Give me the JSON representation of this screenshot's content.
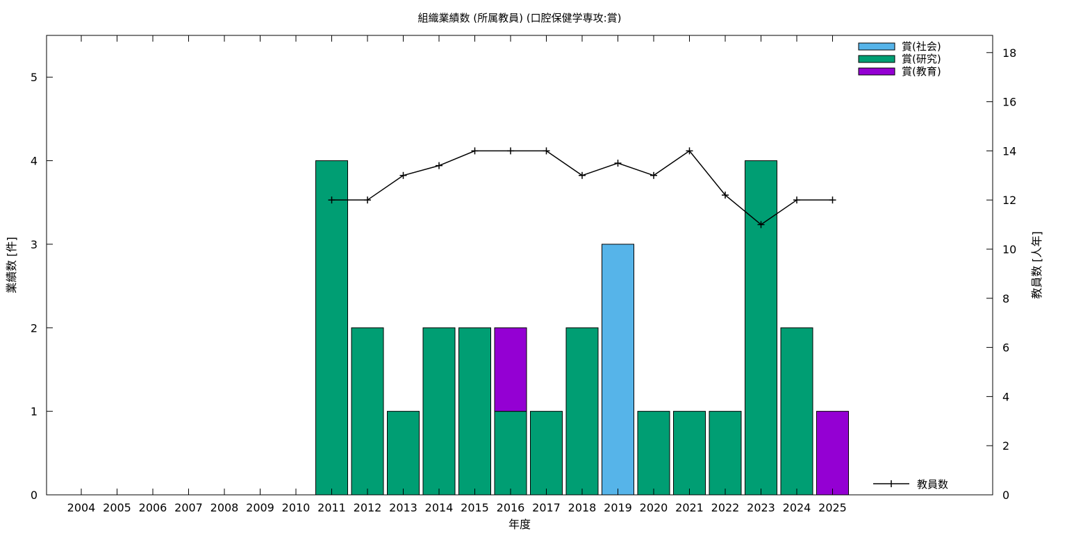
{
  "chart_data": {
    "type": "bar",
    "title": "組織業績数 (所属教員) (口腔保健学専攻:賞)",
    "xlabel": "年度",
    "ylabel": "業績数 [件]",
    "y2label": "教員数 [人年]",
    "categories": [
      "2004",
      "2005",
      "2006",
      "2007",
      "2008",
      "2009",
      "2010",
      "2011",
      "2012",
      "2013",
      "2014",
      "2015",
      "2016",
      "2017",
      "2018",
      "2019",
      "2020",
      "2021",
      "2022",
      "2023",
      "2024",
      "2025"
    ],
    "ylim": [
      0,
      5.5
    ],
    "yticks": [
      0,
      1,
      2,
      3,
      4,
      5
    ],
    "y2lim": [
      0,
      18.7
    ],
    "y2ticks": [
      0,
      2,
      4,
      6,
      8,
      10,
      12,
      14,
      16,
      18
    ],
    "stacked": true,
    "series": [
      {
        "name": "賞(社会)",
        "color": "#56b4e9",
        "values": [
          0,
          0,
          0,
          0,
          0,
          0,
          0,
          0,
          0,
          0,
          0,
          0,
          0,
          0,
          0,
          3,
          0,
          0,
          0,
          0,
          0,
          0
        ]
      },
      {
        "name": "賞(研究)",
        "color": "#009e73",
        "values": [
          0,
          0,
          0,
          0,
          0,
          0,
          0,
          4,
          2,
          1,
          2,
          2,
          1,
          1,
          2,
          0,
          1,
          1,
          1,
          4,
          2,
          0
        ]
      },
      {
        "name": "賞(教育)",
        "color": "#9400d3",
        "values": [
          0,
          0,
          0,
          0,
          0,
          0,
          0,
          0,
          0,
          0,
          0,
          0,
          1,
          0,
          0,
          0,
          0,
          0,
          0,
          0,
          0,
          1
        ]
      }
    ],
    "line_series": {
      "name": "教員数",
      "color": "#000000",
      "axis": "right",
      "x": [
        "2011",
        "2012",
        "2013",
        "2014",
        "2015",
        "2016",
        "2017",
        "2018",
        "2019",
        "2020",
        "2021",
        "2022",
        "2023",
        "2024",
        "2025"
      ],
      "values": [
        12,
        12,
        13,
        13.4,
        14,
        14,
        14,
        13,
        13.5,
        13,
        14,
        12.2,
        11,
        12,
        12
      ]
    },
    "legend": "top-right",
    "grid": false
  }
}
